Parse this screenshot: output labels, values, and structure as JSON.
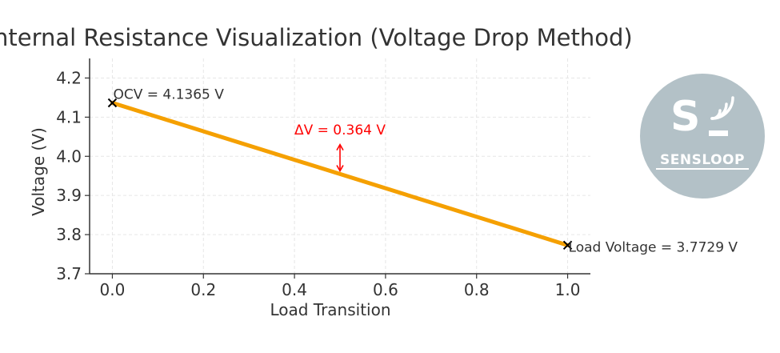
{
  "chart_data": {
    "type": "line",
    "title": "nternal Resistance Visualization (Voltage Drop Method)",
    "xlabel": "Load Transition",
    "ylabel": "Voltage (V)",
    "xlim": [
      -0.05,
      1.05
    ],
    "ylim": [
      3.7,
      4.25
    ],
    "xticks": [
      0.0,
      0.2,
      0.4,
      0.6,
      0.8,
      1.0
    ],
    "xtick_labels": [
      "0.0",
      "0.2",
      "0.4",
      "0.6",
      "0.8",
      "1.0"
    ],
    "yticks": [
      3.7,
      3.8,
      3.9,
      4.0,
      4.1,
      4.2
    ],
    "ytick_labels": [
      "3.7",
      "3.8",
      "3.9",
      "4.0",
      "4.1",
      "4.2"
    ],
    "grid": true,
    "series": [
      {
        "name": "voltage",
        "color": "#f5a000",
        "x": [
          0,
          1
        ],
        "y": [
          4.1365,
          3.7729
        ]
      }
    ],
    "markers": [
      {
        "x": 0,
        "y": 4.1365,
        "symbol": "x",
        "color": "#000000"
      },
      {
        "x": 1,
        "y": 3.7729,
        "symbol": "x",
        "color": "#000000"
      }
    ],
    "annotations": [
      {
        "text": "OCV = 4.1365 V",
        "x": 0,
        "y": 4.1365,
        "color": "#333333"
      },
      {
        "text": "Load Voltage = 3.7729 V",
        "x": 1,
        "y": 3.7729,
        "color": "#333333"
      },
      {
        "text": "ΔV = 0.364 V",
        "x": 0.5,
        "y": 4.07,
        "color": "#ff0000"
      }
    ],
    "arrow": {
      "x": 0.5,
      "y_from": 3.9587,
      "y_to": 4.03,
      "color": "#ff0000"
    }
  },
  "logo": {
    "letter": "S",
    "text": "SENSLOOP",
    "background": "#b3c1c7"
  }
}
